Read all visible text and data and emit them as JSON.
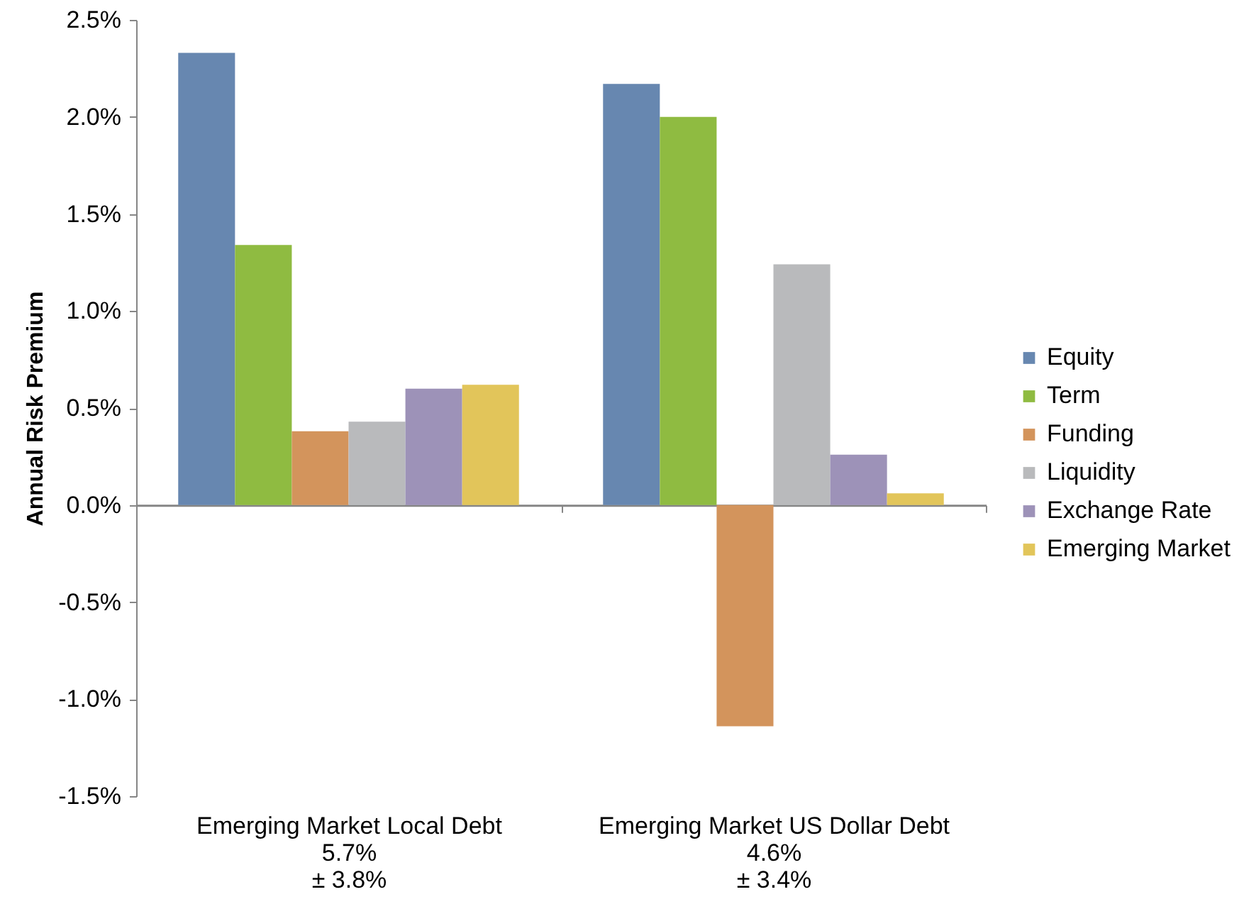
{
  "chart_data": {
    "type": "bar",
    "categories": [
      "Emerging Market Local Debt\n5.7%\n± 3.8%",
      "Emerging Market US Dollar Debt\n4.6%\n± 3.4%"
    ],
    "series": [
      {
        "name": "Equity",
        "color": "#6787b0",
        "values": [
          2.33,
          2.17
        ]
      },
      {
        "name": "Term",
        "color": "#8fbb41",
        "values": [
          1.34,
          2.0
        ]
      },
      {
        "name": "Funding",
        "color": "#d3945c",
        "values": [
          0.38,
          -1.14
        ]
      },
      {
        "name": "Liquidity",
        "color": "#b9babc",
        "values": [
          0.43,
          1.24
        ]
      },
      {
        "name": "Exchange Rate",
        "color": "#9d92b8",
        "values": [
          0.6,
          0.26
        ]
      },
      {
        "name": "Emerging Market",
        "color": "#e2c55a",
        "values": [
          0.62,
          0.06
        ]
      }
    ],
    "ylabel": "Annual Risk Premium",
    "ylim": [
      -1.5,
      2.5
    ],
    "yticks": [
      {
        "value": -1.5,
        "label": "-1.5%"
      },
      {
        "value": -1.0,
        "label": "-1.0%"
      },
      {
        "value": -0.5,
        "label": "-0.5%"
      },
      {
        "value": 0,
        "label": "0.0%"
      },
      {
        "value": 0.5,
        "label": "0.5%"
      },
      {
        "value": 1.0,
        "label": "1.0%"
      },
      {
        "value": 1.5,
        "label": "1.5%"
      },
      {
        "value": 2.0,
        "label": "2.0%"
      },
      {
        "value": 2.5,
        "label": "2.5%"
      }
    ],
    "legend": "right"
  }
}
